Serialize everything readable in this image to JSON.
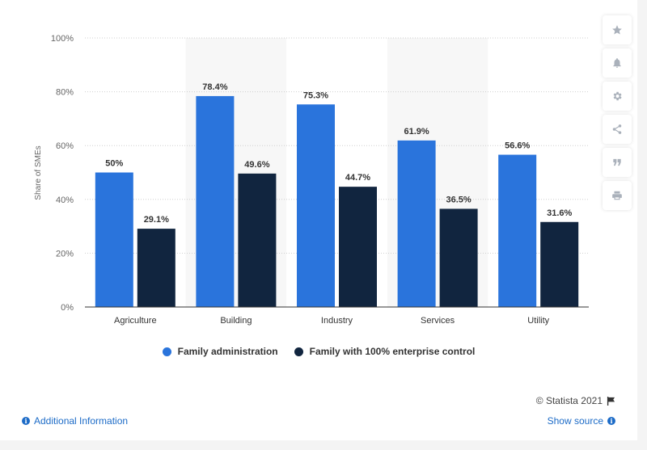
{
  "chart_data": {
    "type": "bar",
    "categories": [
      "Agriculture",
      "Building",
      "Industry",
      "Services",
      "Utility"
    ],
    "series": [
      {
        "name": "Family administration",
        "values": [
          50,
          78.4,
          75.3,
          61.9,
          56.6
        ],
        "labels": [
          "50%",
          "78.4%",
          "75.3%",
          "61.9%",
          "56.6%"
        ],
        "color": "#2a74dc"
      },
      {
        "name": "Family with 100% enterprise control",
        "values": [
          29.1,
          49.6,
          44.7,
          36.5,
          31.6
        ],
        "labels": [
          "29.1%",
          "49.6%",
          "44.7%",
          "36.5%",
          "31.6%"
        ],
        "color": "#11253f"
      }
    ],
    "ylabel": "Share of SMEs",
    "ylim": [
      0,
      100
    ],
    "yticks": [
      0,
      20,
      40,
      60,
      80,
      100
    ],
    "ytick_labels": [
      "0%",
      "20%",
      "40%",
      "60%",
      "80%",
      "100%"
    ],
    "grid": true,
    "legend_position": "bottom",
    "shaded_categories": [
      "Building",
      "Services"
    ]
  },
  "toolbar": {
    "icons": [
      "star-icon",
      "bell-icon",
      "gear-icon",
      "share-icon",
      "quote-icon",
      "print-icon"
    ]
  },
  "footer": {
    "credit": "© Statista 2021",
    "additional_info": "Additional Information",
    "show_source": "Show source"
  },
  "colors": {
    "primary_bar": "#2a74dc",
    "secondary_bar": "#11253f",
    "link": "#1c6bc7",
    "shade": "#f7f7f7"
  }
}
